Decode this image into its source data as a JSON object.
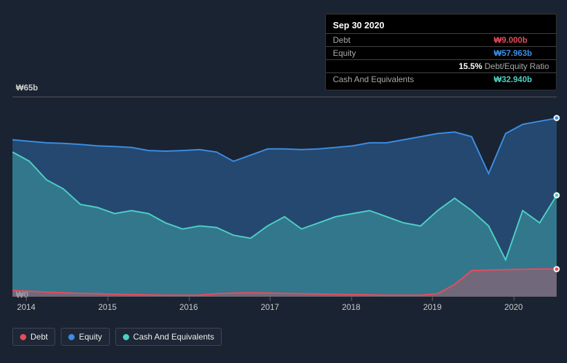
{
  "tooltip": {
    "date": "Sep 30 2020",
    "rows": [
      {
        "label": "Debt",
        "value": "₩9.000b",
        "color": "#e74c5c"
      },
      {
        "label": "Equity",
        "value": "₩57.963b",
        "color": "#3b8ee5"
      },
      {
        "label": "",
        "value": "15.5%",
        "suffix": "Debt/Equity Ratio",
        "color": "#ffffff"
      },
      {
        "label": "Cash And Equivalents",
        "value": "₩32.940b",
        "color": "#4dd0c2"
      }
    ]
  },
  "chart": {
    "type": "area",
    "y_max_label": "₩65b",
    "y_min_label": "₩0",
    "y_max": 65,
    "y_min": 0,
    "x_labels": [
      "2014",
      "2015",
      "2016",
      "2017",
      "2018",
      "2019",
      "2020"
    ],
    "background_color": "#1a2332",
    "grid_color": "#555",
    "fill_opacity": 0.35,
    "line_width": 2,
    "series": [
      {
        "name": "Equity",
        "color": "#3b8ee5",
        "points": [
          51,
          50.5,
          50,
          49.8,
          49.5,
          49,
          48.8,
          48.5,
          47.5,
          47.3,
          47.5,
          47.8,
          47,
          44,
          46,
          48,
          48,
          47.8,
          48,
          48.5,
          49,
          50,
          50,
          51,
          52,
          53,
          53.5,
          52,
          40,
          53,
          56,
          57,
          57.963
        ]
      },
      {
        "name": "Cash And Equivalents",
        "color": "#4dd0c2",
        "points": [
          47,
          44,
          38,
          35,
          30,
          29,
          27,
          28,
          27,
          24,
          22,
          23,
          22.5,
          20,
          19,
          23,
          26,
          22,
          24,
          26,
          27,
          28,
          26,
          24,
          23,
          28,
          32,
          28,
          23,
          12,
          28,
          24,
          32.94
        ]
      },
      {
        "name": "Debt",
        "color": "#e74c5c",
        "points": [
          2,
          1.8,
          1.5,
          1.3,
          1.1,
          1,
          0.8,
          0.7,
          0.6,
          0.5,
          0.5,
          0.5,
          1,
          1.2,
          1.3,
          1.2,
          1.1,
          1,
          0.9,
          0.8,
          0.7,
          0.6,
          0.5,
          0.5,
          0.5,
          1,
          4,
          8.5,
          8.7,
          8.8,
          8.9,
          9,
          9
        ]
      }
    ],
    "markers": [
      {
        "series": "Equity",
        "xi": 32,
        "color": "#3b8ee5"
      },
      {
        "series": "Cash And Equivalents",
        "xi": 32,
        "color": "#4dd0c2"
      },
      {
        "series": "Debt",
        "xi": 32,
        "color": "#e74c5c"
      }
    ]
  },
  "legend": [
    {
      "label": "Debt",
      "color": "#e74c5c"
    },
    {
      "label": "Equity",
      "color": "#3b8ee5"
    },
    {
      "label": "Cash And Equivalents",
      "color": "#4dd0c2"
    }
  ]
}
